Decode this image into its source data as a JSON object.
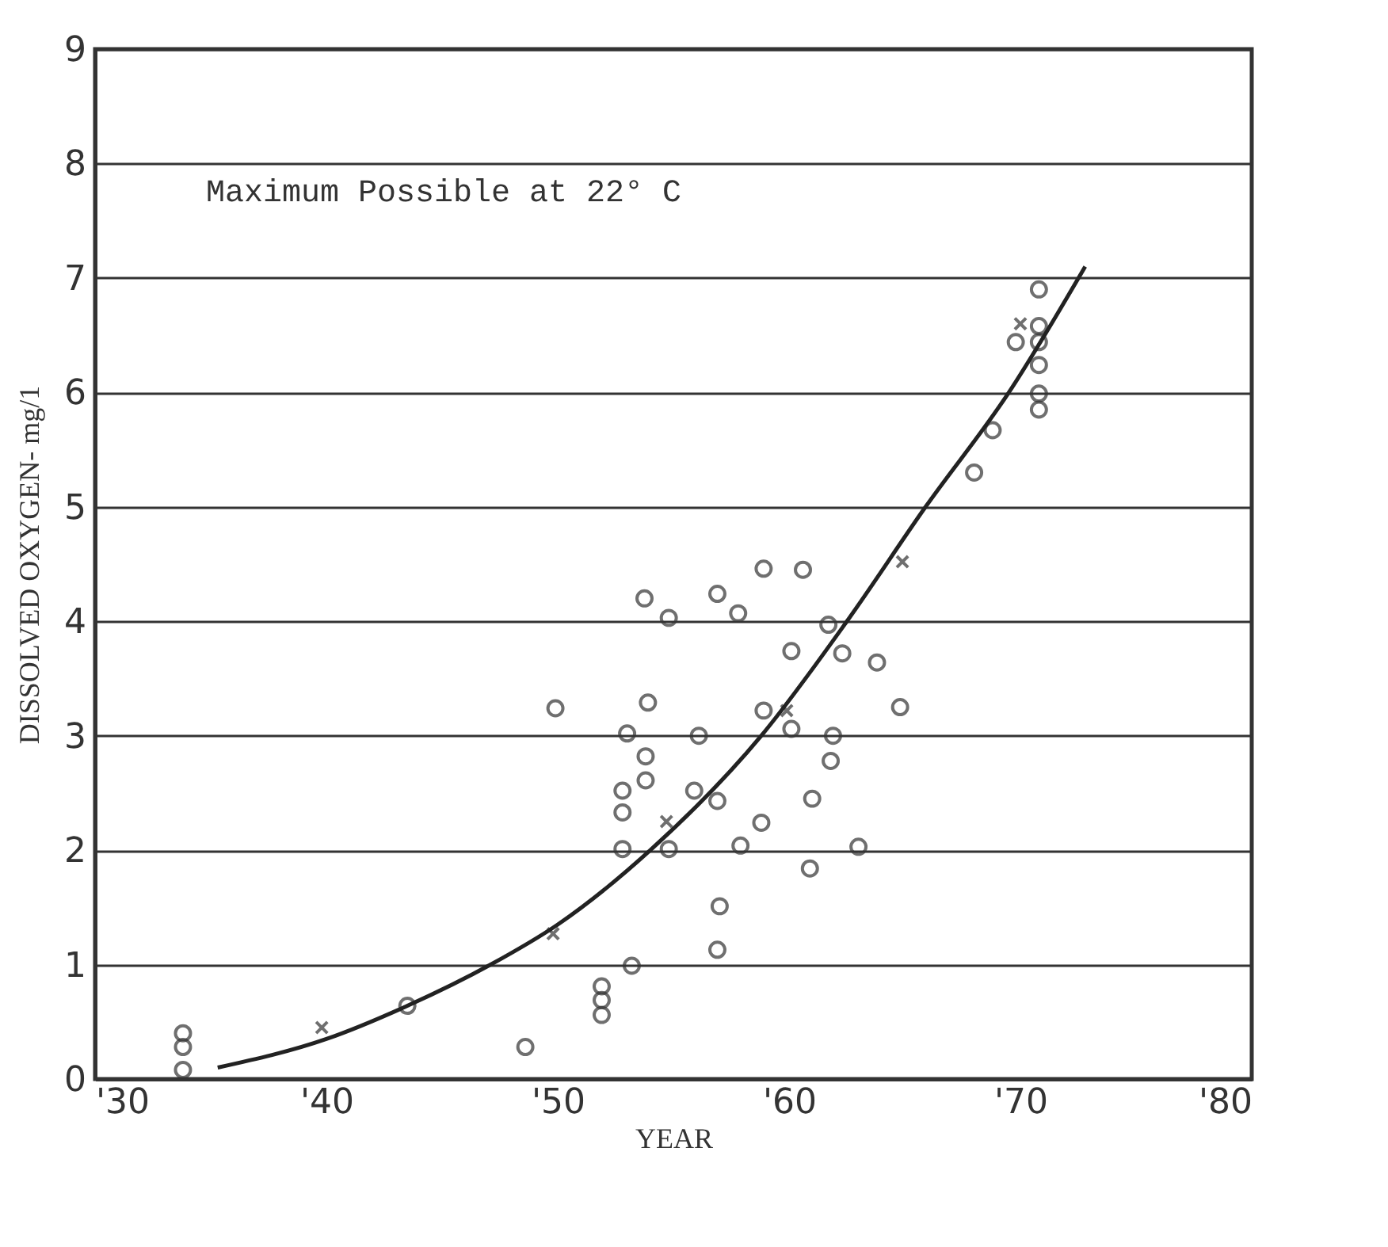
{
  "chart_data": {
    "type": "scatter",
    "xlabel": "YEAR",
    "ylabel": "DISSOLVED OXYGEN- mg/1",
    "annotations": [
      "Maximum Possible at 22° C"
    ],
    "xlim": [
      1930,
      1980
    ],
    "xticks": [
      {
        "value": 1930,
        "label": "'30"
      },
      {
        "value": 1940,
        "label": "'40"
      },
      {
        "value": 1950,
        "label": "'50"
      },
      {
        "value": 1960,
        "label": "'60"
      },
      {
        "value": 1970,
        "label": "'70"
      },
      {
        "value": 1980,
        "label": "'80"
      }
    ],
    "ylim": [
      0,
      9
    ],
    "yticks": [
      0,
      1,
      2,
      3,
      4,
      5,
      6,
      7,
      8,
      9
    ],
    "grid": "y",
    "legend": false,
    "series": [
      {
        "marker": "circle",
        "color": "#333333",
        "x": [
          1933.8,
          1933.8,
          1933.8,
          1943.5,
          1948.6,
          1951.9,
          1951.9,
          1951.9,
          1953.2,
          1952.8,
          1954.8,
          1952.8,
          1952.8,
          1953.8,
          1953.8,
          1953,
          1958.9,
          1960.6,
          1953.75,
          1956.9,
          1954.8,
          1957.8,
          1961.7,
          1960.1,
          1962.3,
          1963.8,
          1949.9,
          1953.9,
          1958.9,
          1964.8,
          1956.1,
          1960.1,
          1961.9,
          1955.9,
          1956.9,
          1961,
          1961.8,
          1958.8,
          1957.9,
          1963,
          1960.9,
          1957,
          1956.9,
          1968.8,
          1968,
          1970.8,
          1970.8,
          1969.8,
          1970.8,
          1970.8,
          1970.8,
          1970.8
        ],
        "values": [
          0.08,
          0.28,
          0.4,
          0.64,
          0.28,
          0.81,
          0.69,
          0.56,
          0.99,
          2.01,
          2.01,
          2.33,
          2.52,
          2.82,
          2.61,
          3.02,
          4.46,
          4.45,
          4.2,
          4.24,
          4.03,
          4.07,
          3.97,
          3.74,
          3.72,
          3.64,
          3.24,
          3.29,
          3.22,
          3.25,
          3,
          3.06,
          3,
          2.52,
          2.43,
          2.45,
          2.78,
          2.24,
          2.04,
          2.03,
          1.84,
          1.51,
          1.13,
          5.67,
          5.3,
          6.9,
          6.58,
          6.44,
          6.44,
          6.24,
          5.99,
          5.85
        ]
      },
      {
        "marker": "cross",
        "color": "#333333",
        "x": [
          1939.8,
          1949.8,
          1954.7,
          1959.9,
          1964.9,
          1970
        ],
        "values": [
          0.45,
          1.27,
          2.25,
          3.22,
          4.52,
          6.6
        ]
      },
      {
        "type": "line",
        "marker": "none",
        "color": "#222222",
        "x": [
          1935.3,
          1940,
          1943.5,
          1947.1,
          1950,
          1954,
          1958.8,
          1962.5,
          1965.9,
          1969.5,
          1972.8
        ],
        "values": [
          0.1,
          0.35,
          0.64,
          1,
          1.35,
          2,
          3,
          4,
          5,
          6,
          7.1
        ]
      }
    ]
  }
}
